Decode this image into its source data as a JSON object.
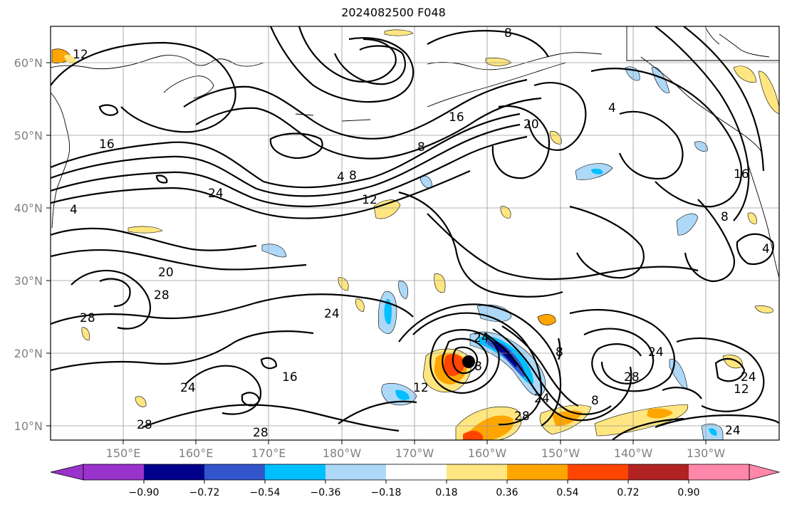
{
  "title": "2024082500 F048",
  "lat_labels": [
    "60°N",
    "50°N",
    "40°N",
    "30°N",
    "20°N",
    "10°N"
  ],
  "lon_labels": [
    "150°E",
    "160°E",
    "170°E",
    "180°W",
    "170°W",
    "160°W",
    "150°W",
    "140°W",
    "130°W"
  ],
  "contour_labels": [
    "12",
    "8",
    "16",
    "4",
    "8",
    "16",
    "20",
    "24",
    "4",
    "8",
    "12",
    "16",
    "4",
    "8",
    "20",
    "28",
    "24",
    "28",
    "24",
    "16",
    "24",
    "28",
    "28",
    "12",
    "24",
    "8",
    "28",
    "24",
    "28",
    "8",
    "24",
    "12",
    "8",
    "24",
    "4"
  ],
  "colorbar": {
    "colors": [
      "#9933cc",
      "#00008b",
      "#3355cc",
      "#00bfff",
      "#add8f7",
      "#ffffff",
      "#ffe680",
      "#ffa500",
      "#ff4500",
      "#b22222",
      "#ff88aa"
    ],
    "tick_labels": [
      "−0.90",
      "−0.72",
      "−0.54",
      "−0.36",
      "−0.18",
      "0.18",
      "0.36",
      "0.54",
      "0.72",
      "0.90"
    ]
  },
  "storm_marker": {
    "lon": -163,
    "lat": 19
  }
}
